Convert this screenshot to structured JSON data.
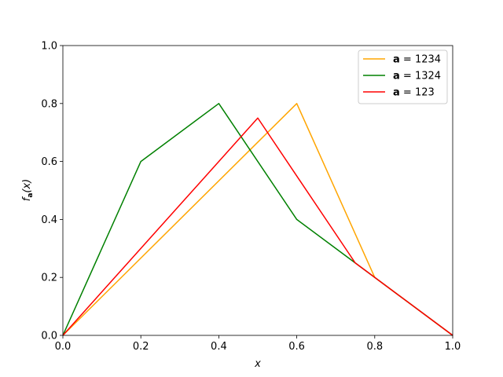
{
  "chart_data": {
    "type": "line",
    "xlabel": "x",
    "ylabel": "f_a(x)",
    "ylabel_parts": {
      "f": "f",
      "sub": "a",
      "arg": "(x)"
    },
    "xlim": [
      0,
      1
    ],
    "ylim": [
      0,
      1
    ],
    "xticks": [
      0.0,
      0.2,
      0.4,
      0.6,
      0.8,
      1.0
    ],
    "yticks": [
      0.0,
      0.2,
      0.4,
      0.6,
      0.8,
      1.0
    ],
    "xtick_labels": [
      "0.0",
      "0.2",
      "0.4",
      "0.6",
      "0.8",
      "1.0"
    ],
    "ytick_labels": [
      "0.0",
      "0.2",
      "0.4",
      "0.6",
      "0.8",
      "1.0"
    ],
    "grid": false,
    "legend_position": "top-right",
    "series": [
      {
        "name": "a = 1234",
        "label_bold": "a",
        "label_rest": " = 1234",
        "color": "#ffa500",
        "x": [
          0,
          0.6,
          0.8,
          1.0
        ],
        "y": [
          0,
          0.8,
          0.2,
          0
        ]
      },
      {
        "name": "a = 1324",
        "label_bold": "a",
        "label_rest": " = 1324",
        "color": "#008000",
        "x": [
          0,
          0.2,
          0.4,
          0.6,
          0.75,
          1.0
        ],
        "y": [
          0,
          0.6,
          0.8,
          0.4,
          0.25,
          0
        ]
      },
      {
        "name": "a = 123",
        "label_bold": "a",
        "label_rest": " = 123",
        "color": "#ff0000",
        "x": [
          0,
          0.5,
          0.75,
          1.0
        ],
        "y": [
          0,
          0.75,
          0.25,
          0
        ]
      }
    ]
  }
}
